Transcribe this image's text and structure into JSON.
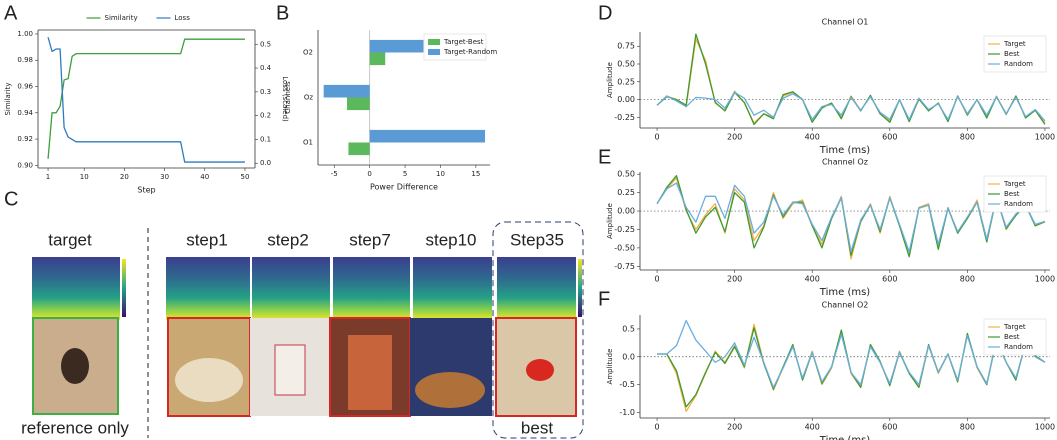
{
  "chart_data": [
    {
      "type": "line",
      "panel": "A",
      "xlabel": "Step",
      "ylabel": "Similarity",
      "y2label": "Loss (scaled)",
      "legend": "upper center",
      "x": [
        1,
        2,
        3,
        4,
        5,
        6,
        7,
        8,
        34,
        35,
        50
      ],
      "xlim": [
        -1.5,
        52.5
      ],
      "xticks": [
        1,
        10,
        20,
        30,
        40,
        50
      ],
      "ylim": [
        0.898,
        1.003
      ],
      "yticks": [
        {
          "value": 0.9,
          "label": "0.90"
        },
        {
          "value": 0.92,
          "label": "0.92"
        },
        {
          "value": 0.94,
          "label": "0.94"
        },
        {
          "value": 0.96,
          "label": "0.96"
        },
        {
          "value": 0.98,
          "label": "0.98"
        },
        {
          "value": 1.0,
          "label": "1.00"
        }
      ],
      "y2lim": [
        -0.02,
        0.56
      ],
      "y2ticks": [
        {
          "value": 0,
          "label": "0.0"
        },
        0.1,
        0.2,
        0.3,
        0.4,
        0.5
      ],
      "series": [
        {
          "name": "Similarity",
          "color": "#3aa13a",
          "values": [
            0.905,
            0.94,
            0.94,
            0.945,
            0.965,
            0.966,
            0.983,
            0.985,
            0.985,
            0.996,
            0.996
          ]
        },
        {
          "name": "Loss",
          "color": "#2f7bbf",
          "axis": "y2",
          "values": [
            0.53,
            0.47,
            0.48,
            0.48,
            0.15,
            0.11,
            0.1,
            0.09,
            0.09,
            0.005,
            0.005
          ]
        }
      ]
    },
    {
      "type": "hbar",
      "panel": "B",
      "xlabel": "Power Difference",
      "ylabel": "Channels",
      "legend": "upper right",
      "categories": [
        "O1",
        "Oz",
        "O2"
      ],
      "xlim": [
        -7.3,
        17
      ],
      "xticks": [
        -5,
        0,
        5,
        10,
        15
      ],
      "series": [
        {
          "name": "Target-Best",
          "color": "#5cb85c",
          "values": [
            -3,
            -3.2,
            2.2
          ]
        },
        {
          "name": "Target-Random",
          "color": "#5b9bd5",
          "values": [
            16.3,
            -6.5,
            7.6
          ]
        }
      ]
    },
    {
      "type": "line",
      "panel": "D",
      "title": "Channel O1",
      "xlabel": "Time (ms)",
      "ylabel": "Amplitude",
      "legend": "upper right",
      "hline": 0,
      "x": [
        0,
        25,
        50,
        75,
        100,
        125,
        150,
        175,
        200,
        225,
        250,
        275,
        300,
        325,
        350,
        375,
        400,
        425,
        450,
        475,
        500,
        525,
        550,
        575,
        600,
        625,
        650,
        675,
        700,
        725,
        750,
        775,
        800,
        825,
        850,
        875,
        900,
        925,
        950,
        975,
        1000
      ],
      "xlim": [
        -44,
        1013
      ],
      "xticks": [
        0,
        200,
        400,
        600,
        800,
        1000
      ],
      "ylim": [
        -0.4,
        0.95
      ],
      "yticks": [
        {
          "value": -0.25,
          "label": "-0.25"
        },
        {
          "value": 0,
          "label": "0.00"
        },
        {
          "value": 0.25,
          "label": "0.25"
        },
        {
          "value": 0.5,
          "label": "0.50"
        },
        {
          "value": 0.75,
          "label": "0.75"
        }
      ],
      "series": [
        {
          "name": "Target",
          "color": "#f5b041",
          "values": [
            -0.08,
            0.05,
            0.0,
            -0.1,
            0.85,
            0.55,
            -0.05,
            -0.15,
            0.12,
            -0.05,
            -0.33,
            -0.2,
            -0.25,
            0.05,
            0.1,
            0.0,
            -0.3,
            -0.1,
            -0.05,
            -0.25,
            0.05,
            -0.15,
            0.05,
            -0.2,
            -0.3,
            0.0,
            -0.3,
            0.0,
            -0.15,
            -0.05,
            -0.3,
            0.05,
            -0.2,
            0.0,
            -0.25,
            0.05,
            -0.2,
            0.05,
            -0.25,
            -0.15,
            -0.33
          ]
        },
        {
          "name": "Best",
          "color": "#3d9a32",
          "values": [
            -0.08,
            0.04,
            0.0,
            -0.08,
            0.92,
            0.5,
            -0.04,
            -0.16,
            0.1,
            -0.04,
            -0.35,
            -0.2,
            -0.27,
            0.07,
            0.11,
            0.0,
            -0.32,
            -0.12,
            -0.05,
            -0.27,
            0.04,
            -0.16,
            0.06,
            -0.2,
            -0.32,
            0.0,
            -0.31,
            0.01,
            -0.16,
            -0.05,
            -0.31,
            0.05,
            -0.22,
            0.0,
            -0.26,
            0.04,
            -0.21,
            0.05,
            -0.26,
            -0.15,
            -0.35
          ]
        },
        {
          "name": "Random",
          "color": "#6aaee0",
          "values": [
            -0.08,
            0.05,
            -0.02,
            -0.1,
            0.03,
            0.02,
            0.0,
            -0.12,
            0.1,
            0.02,
            -0.22,
            -0.15,
            -0.25,
            0.02,
            0.08,
            0.0,
            -0.28,
            -0.1,
            -0.07,
            -0.22,
            0.03,
            -0.15,
            0.04,
            -0.18,
            -0.28,
            0.0,
            -0.28,
            0.02,
            -0.14,
            -0.06,
            -0.28,
            0.04,
            -0.2,
            0.0,
            -0.22,
            0.04,
            -0.2,
            0.03,
            -0.24,
            -0.14,
            -0.3
          ]
        }
      ]
    },
    {
      "type": "line",
      "panel": "E",
      "title": "Channel Oz",
      "xlabel": "Time (ms)",
      "ylabel": "Amplitude",
      "legend": "upper right",
      "hline": 0,
      "x": [
        0,
        25,
        50,
        75,
        100,
        125,
        150,
        175,
        200,
        225,
        250,
        275,
        300,
        325,
        350,
        375,
        400,
        425,
        450,
        475,
        500,
        525,
        550,
        575,
        600,
        625,
        650,
        675,
        700,
        725,
        750,
        775,
        800,
        825,
        850,
        875,
        900,
        925,
        950,
        975,
        1000
      ],
      "xlim": [
        -44,
        1013
      ],
      "xticks": [
        0,
        200,
        400,
        600,
        800,
        1000
      ],
      "ylim": [
        -0.8,
        0.53
      ],
      "yticks": [
        {
          "value": -0.75,
          "label": "-0.75"
        },
        {
          "value": -0.5,
          "label": "-0.50"
        },
        {
          "value": -0.25,
          "label": "-0.25"
        },
        {
          "value": 0,
          "label": "0.00"
        },
        {
          "value": 0.25,
          "label": "0.25"
        },
        {
          "value": 0.5,
          "label": "0.50"
        }
      ],
      "series": [
        {
          "name": "Target",
          "color": "#f5b041",
          "values": [
            0.1,
            0.3,
            0.45,
            0.0,
            -0.25,
            -0.05,
            0.1,
            -0.3,
            0.3,
            0.15,
            -0.4,
            -0.2,
            0.25,
            -0.1,
            0.1,
            0.15,
            -0.2,
            -0.45,
            -0.1,
            0.2,
            -0.65,
            -0.15,
            0.1,
            -0.3,
            0.2,
            -0.2,
            -0.6,
            0.05,
            0.1,
            -0.5,
            0.05,
            -0.3,
            -0.1,
            0.15,
            -0.4,
            0.2,
            -0.25,
            -0.05,
            0.1,
            -0.2,
            -0.15
          ]
        },
        {
          "name": "Best",
          "color": "#3d9a32",
          "values": [
            0.1,
            0.32,
            0.48,
            0.02,
            -0.3,
            -0.08,
            0.05,
            -0.28,
            0.25,
            0.12,
            -0.5,
            -0.22,
            0.22,
            -0.08,
            0.12,
            0.12,
            -0.2,
            -0.5,
            -0.1,
            0.18,
            -0.6,
            -0.14,
            0.08,
            -0.28,
            0.18,
            -0.2,
            -0.62,
            0.04,
            0.08,
            -0.52,
            0.04,
            -0.3,
            -0.1,
            0.12,
            -0.42,
            0.18,
            -0.24,
            -0.06,
            0.08,
            -0.2,
            -0.14
          ]
        },
        {
          "name": "Random",
          "color": "#6aaee0",
          "values": [
            0.1,
            0.3,
            0.38,
            0.05,
            -0.15,
            0.2,
            0.2,
            -0.1,
            0.35,
            0.2,
            -0.3,
            -0.15,
            0.2,
            -0.05,
            0.12,
            0.1,
            -0.18,
            -0.4,
            -0.08,
            0.18,
            -0.55,
            -0.12,
            0.08,
            -0.25,
            0.18,
            -0.18,
            -0.55,
            0.04,
            0.08,
            -0.45,
            0.04,
            -0.28,
            -0.08,
            0.12,
            -0.38,
            0.18,
            -0.22,
            -0.04,
            0.08,
            -0.18,
            -0.14
          ]
        }
      ]
    },
    {
      "type": "line",
      "panel": "F",
      "title": "Channel O2",
      "xlabel": "Time (ms)",
      "ylabel": "Amplitude",
      "legend": "upper right",
      "hline": 0,
      "x": [
        0,
        25,
        50,
        75,
        100,
        125,
        150,
        175,
        200,
        225,
        250,
        275,
        300,
        325,
        350,
        375,
        400,
        425,
        450,
        475,
        500,
        525,
        550,
        575,
        600,
        625,
        650,
        675,
        700,
        725,
        750,
        775,
        800,
        825,
        850,
        875,
        900,
        925,
        950,
        975,
        1000
      ],
      "xlim": [
        -44,
        1013
      ],
      "xticks": [
        0,
        200,
        400,
        600,
        800,
        1000
      ],
      "ylim": [
        -1.1,
        0.75
      ],
      "yticks": [
        {
          "value": -1,
          "label": "-1.0"
        },
        {
          "value": -0.5,
          "label": "-0.5"
        },
        {
          "value": 0,
          "label": "0.0"
        },
        {
          "value": 0.5,
          "label": "0.5"
        }
      ],
      "series": [
        {
          "name": "Target",
          "color": "#f5b041",
          "values": [
            0.05,
            0.05,
            -0.3,
            -0.98,
            -0.7,
            -0.3,
            0.1,
            -0.1,
            0.2,
            -0.2,
            0.58,
            -0.1,
            -0.6,
            -0.2,
            0.2,
            -0.4,
            0.1,
            -0.5,
            -0.2,
            0.45,
            -0.3,
            -0.55,
            0.2,
            -0.1,
            -0.5,
            0.1,
            -0.3,
            -0.55,
            0.2,
            -0.3,
            0.05,
            -0.45,
            0.4,
            -0.2,
            -0.5,
            0.3,
            -0.1,
            -0.4,
            0.25,
            0.0,
            -0.1
          ]
        },
        {
          "name": "Best",
          "color": "#3d9a32",
          "values": [
            0.05,
            0.05,
            -0.25,
            -0.9,
            -0.68,
            -0.28,
            0.08,
            -0.12,
            0.18,
            -0.18,
            0.52,
            -0.12,
            -0.58,
            -0.18,
            0.22,
            -0.42,
            0.08,
            -0.48,
            -0.18,
            0.48,
            -0.28,
            -0.55,
            0.22,
            -0.08,
            -0.52,
            0.08,
            -0.3,
            -0.55,
            0.22,
            -0.28,
            0.05,
            -0.45,
            0.42,
            -0.18,
            -0.5,
            0.32,
            -0.1,
            -0.42,
            0.25,
            0.02,
            -0.1
          ]
        },
        {
          "name": "Random",
          "color": "#6aaee0",
          "values": [
            0.05,
            0.05,
            0.2,
            0.65,
            0.3,
            0.1,
            -0.1,
            0.0,
            0.25,
            -0.15,
            0.35,
            -0.1,
            -0.55,
            -0.2,
            0.18,
            -0.38,
            0.08,
            -0.45,
            -0.18,
            0.4,
            -0.28,
            -0.5,
            0.18,
            -0.1,
            -0.48,
            0.08,
            -0.28,
            -0.5,
            0.2,
            -0.28,
            0.05,
            -0.42,
            0.38,
            -0.18,
            -0.48,
            0.28,
            -0.1,
            -0.38,
            0.22,
            0.0,
            -0.1
          ]
        }
      ]
    }
  ],
  "panel_c": {
    "panel": "C",
    "labels": [
      "target",
      "step1",
      "step2",
      "step7",
      "step10",
      "Step35"
    ],
    "reference": "reference only",
    "best": "best"
  }
}
